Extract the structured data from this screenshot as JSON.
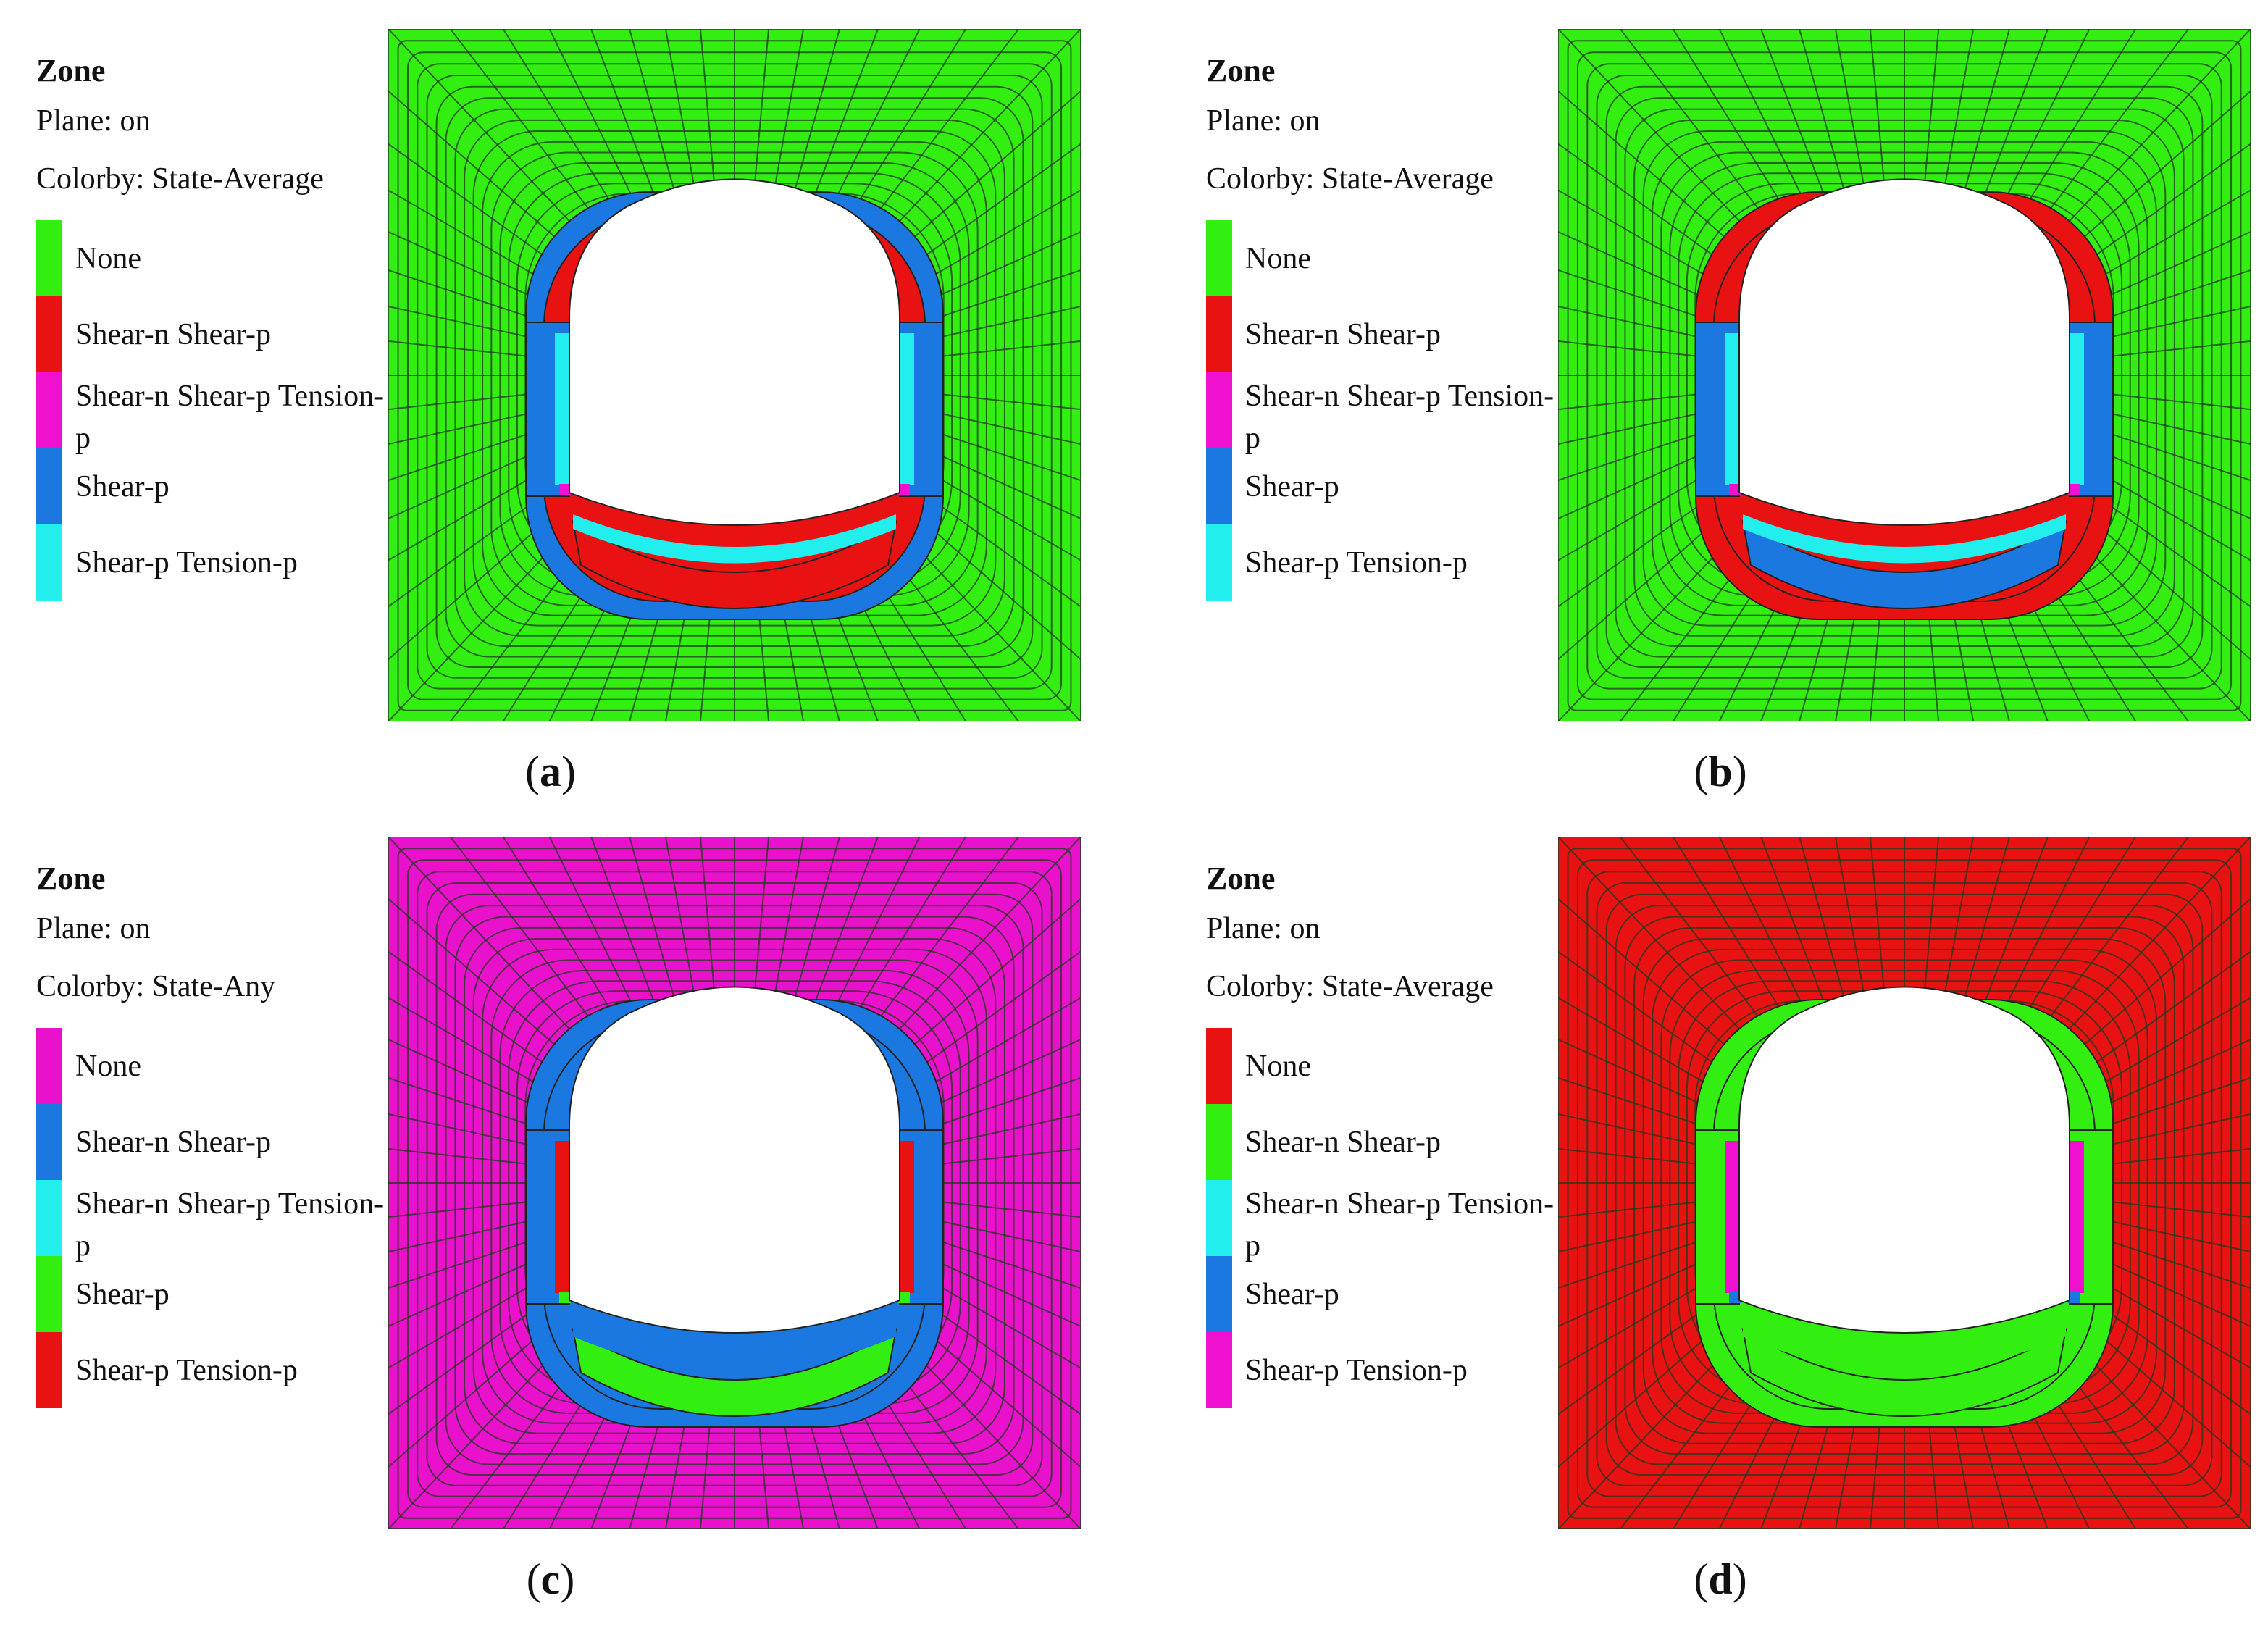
{
  "panels": [
    {
      "id": "a",
      "caption_letter": "a",
      "legend": {
        "title": "Zone",
        "plane": "Plane: on",
        "colorby": "Colorby: State-Average",
        "items": [
          {
            "label": "None",
            "color": "#33ee11"
          },
          {
            "label": "Shear-n Shear-p",
            "color": "#e81212"
          },
          {
            "label": "Shear-n Shear-p Tension-p",
            "color": "#f011d0"
          },
          {
            "label": "Shear-p",
            "color": "#1a78e0"
          },
          {
            "label": "Shear-p Tension-p",
            "color": "#22eeee"
          }
        ]
      },
      "mesh": {
        "background": "#33ee11",
        "ring_inner": "#e81212",
        "ring_outer": "#1a78e0",
        "wall": "#1a78e0",
        "wall_inner": "#22eeee",
        "floor_inner": "#22eeee",
        "floor_outer": "#e81212",
        "accent": "#f011d0"
      }
    },
    {
      "id": "b",
      "caption_letter": "b",
      "legend": {
        "title": "Zone",
        "plane": "Plane: on",
        "colorby": "Colorby: State-Average",
        "items": [
          {
            "label": "None",
            "color": "#33ee11"
          },
          {
            "label": "Shear-n Shear-p",
            "color": "#e81212"
          },
          {
            "label": "Shear-n Shear-p Tension-p",
            "color": "#f011d0"
          },
          {
            "label": "Shear-p",
            "color": "#1a78e0"
          },
          {
            "label": "Shear-p Tension-p",
            "color": "#22eeee"
          }
        ]
      },
      "mesh": {
        "background": "#33ee11",
        "ring_inner": "#e81212",
        "ring_outer": "#e81212",
        "wall": "#1a78e0",
        "wall_inner": "#22eeee",
        "floor_inner": "#22eeee",
        "floor_outer": "#1a78e0",
        "accent": "#f011d0"
      }
    },
    {
      "id": "c",
      "caption_letter": "c",
      "legend": {
        "title": "Zone",
        "plane": "Plane: on",
        "colorby": "Colorby: State-Any",
        "items": [
          {
            "label": "None",
            "color": "#ea11cc"
          },
          {
            "label": "Shear-n Shear-p",
            "color": "#1a78e0"
          },
          {
            "label": "Shear-n Shear-p Tension-p",
            "color": "#22eeee"
          },
          {
            "label": "Shear-p",
            "color": "#33ee11"
          },
          {
            "label": "Shear-p Tension-p",
            "color": "#e81212"
          }
        ]
      },
      "mesh": {
        "background": "#ea11cc",
        "ring_inner": "#1a78e0",
        "ring_outer": "#1a78e0",
        "wall": "#1a78e0",
        "wall_inner": "#e81212",
        "floor_inner": "#1a78e0",
        "floor_outer": "#33ee11",
        "accent": "#33ee11"
      }
    },
    {
      "id": "d",
      "caption_letter": "d",
      "legend": {
        "title": "Zone",
        "plane": "Plane: on",
        "colorby": "Colorby: State-Average",
        "items": [
          {
            "label": "None",
            "color": "#e81212"
          },
          {
            "label": "Shear-n Shear-p",
            "color": "#33ee11"
          },
          {
            "label": "Shear-n Shear-p Tension-p",
            "color": "#22eeee"
          },
          {
            "label": "Shear-p",
            "color": "#1a78e0"
          },
          {
            "label": "Shear-p Tension-p",
            "color": "#f011d0"
          }
        ]
      },
      "mesh": {
        "background": "#e81212",
        "ring_inner": "#33ee11",
        "ring_outer": "#33ee11",
        "wall": "#33ee11",
        "wall_inner": "#f011d0",
        "floor_inner": "#33ee11",
        "floor_outer": "#33ee11",
        "accent": "#1a78e0"
      }
    }
  ]
}
